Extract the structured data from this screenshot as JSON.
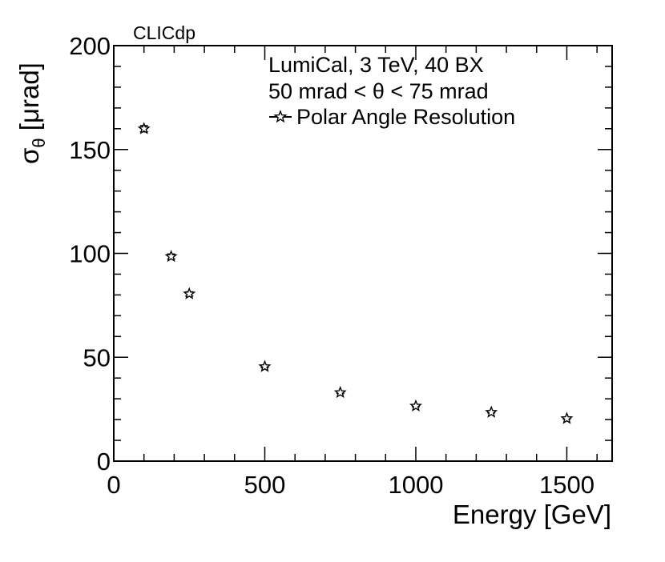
{
  "chart_data": {
    "type": "scatter",
    "tag": "CLICdp",
    "legend_lines": [
      "LumiCal, 3 TeV, 40 BX",
      "50 mrad < θ < 75 mrad"
    ],
    "series": [
      {
        "name": "Polar Angle Resolution",
        "marker": "open-star",
        "x": [
          100,
          190,
          250,
          500,
          750,
          1000,
          1250,
          1500
        ],
        "y": [
          160,
          98.5,
          80.5,
          45.5,
          33,
          26.5,
          23.5,
          20.5
        ],
        "y_err": [
          1.5,
          1.2,
          1.0,
          0.5,
          0.4,
          0.3,
          0.3,
          0.3
        ]
      }
    ],
    "xlabel": "Energy [GeV]",
    "ylabel_symbol": "σ",
    "ylabel_subscript": "θ",
    "ylabel_unit": "[μrad]",
    "xlim": [
      0,
      1650
    ],
    "ylim": [
      0,
      200
    ],
    "x_ticks": [
      0,
      500,
      1000,
      1500
    ],
    "y_ticks": [
      0,
      50,
      100,
      150,
      200
    ],
    "grid": false,
    "legend_position": "top-right"
  }
}
